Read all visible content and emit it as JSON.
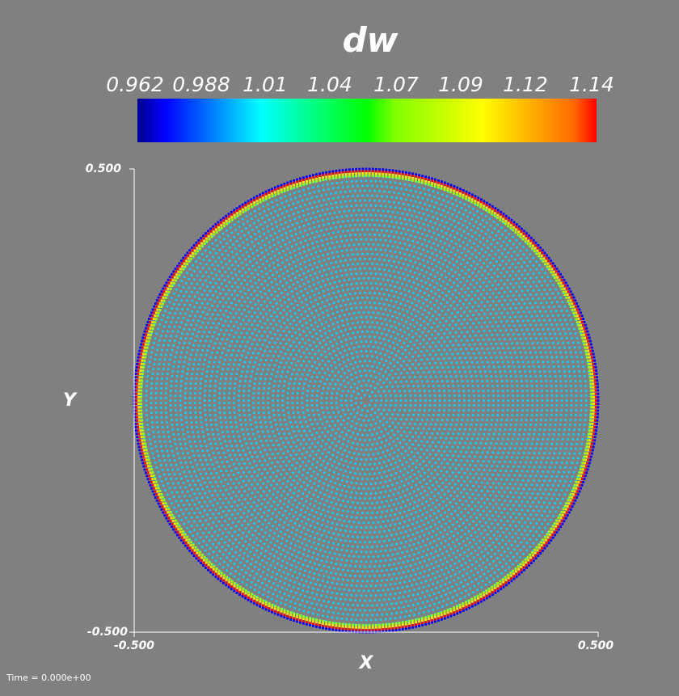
{
  "chart_data": {
    "type": "scatter",
    "title": "dw",
    "xlabel": "X",
    "ylabel": "Y",
    "xlim": [
      -0.5,
      0.5
    ],
    "ylim": [
      -0.5,
      0.5
    ],
    "x_ticks": [
      "-0.500",
      "0.500"
    ],
    "y_ticks": [
      "-0.500",
      "0.500"
    ],
    "colorbar": {
      "range": [
        0.962,
        1.14
      ],
      "tick_labels": [
        "0.962",
        "0.988",
        "1.01",
        "1.04",
        "1.07",
        "1.09",
        "1.12",
        "1.14"
      ],
      "colormap": [
        "#0000ff",
        "#00ffff",
        "#00ff00",
        "#ffff00",
        "#ff0000"
      ]
    },
    "point_rings": {
      "interior_value": 0.999,
      "inner_radius": 0.49,
      "layers": [
        {
          "radius": 0.4855,
          "value": 1.08
        },
        {
          "radius": 0.4905,
          "value": 1.1
        },
        {
          "radius": 0.4955,
          "value": 1.14
        },
        {
          "radius": 0.5,
          "value": 0.962
        }
      ]
    },
    "grid": false,
    "legend": "colorbar-top"
  },
  "footer": {
    "time_label": "Time = 0.000e+00"
  }
}
